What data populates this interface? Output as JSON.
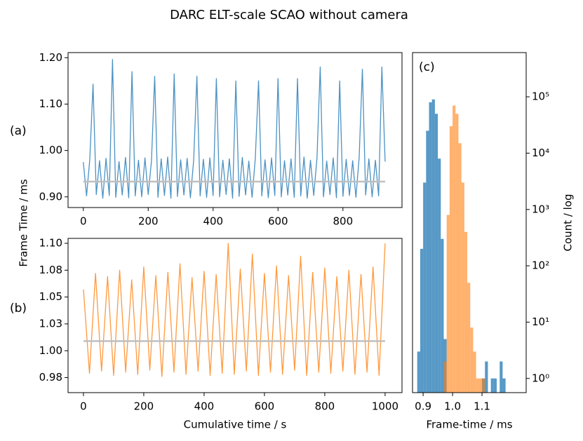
{
  "figure": {
    "title": "DARC ELT-scale SCAO without camera",
    "ylabel": "Frame Time / ms"
  },
  "chart_data": [
    {
      "type": "line",
      "annotation": "(a)",
      "x": [
        0,
        10,
        20,
        30,
        40,
        50,
        60,
        70,
        80,
        90,
        100,
        110,
        120,
        130,
        140,
        150,
        160,
        170,
        180,
        190,
        200,
        210,
        220,
        230,
        240,
        250,
        260,
        270,
        280,
        290,
        300,
        310,
        320,
        330,
        340,
        350,
        360,
        370,
        380,
        390,
        400,
        410,
        420,
        430,
        440,
        450,
        460,
        470,
        480,
        490,
        500,
        510,
        520,
        530,
        540,
        550,
        560,
        570,
        580,
        590,
        600,
        610,
        620,
        630,
        640,
        650,
        660,
        670,
        680,
        690,
        700,
        710,
        720,
        730,
        740,
        750,
        760,
        770,
        780,
        790,
        800,
        810,
        820,
        830,
        840,
        850,
        860,
        870,
        880,
        890,
        900,
        910,
        920,
        930
      ],
      "series": [
        {
          "color": "#1f77b4",
          "alpha": 0.8,
          "values": [
            0.975,
            0.902,
            0.981,
            1.143,
            0.905,
            0.978,
            0.897,
            0.983,
            0.903,
            1.196,
            0.899,
            0.976,
            0.904,
            0.985,
            0.898,
            1.17,
            0.902,
            0.979,
            0.9,
            0.984,
            0.905,
            0.977,
            1.16,
            0.899,
            0.982,
            0.903,
            0.986,
            0.897,
            1.165,
            0.901,
            0.98,
            0.904,
            0.983,
            0.898,
            0.978,
            1.16,
            0.902,
            0.981,
            0.899,
            0.984,
            0.903,
            1.155,
            0.9,
            0.979,
            0.905,
            0.982,
            0.897,
            1.15,
            0.901,
            0.985,
            0.904,
            0.977,
            0.899,
            0.983,
            1.15,
            0.902,
            0.98,
            0.898,
            0.984,
            0.903,
            1.155,
            0.9,
            0.978,
            0.904,
            0.982,
            0.899,
            1.155,
            0.902,
            0.986,
            0.897,
            0.979,
            0.903,
            0.983,
            1.18,
            0.9,
            0.977,
            0.905,
            0.984,
            0.898,
            1.15,
            0.901,
            0.981,
            0.903,
            0.978,
            0.899,
            0.985,
            1.175,
            0.904,
            0.982,
            0.9,
            0.979,
            0.902,
            1.18,
            0.976
          ]
        },
        {
          "color": "#bfbfbf",
          "alpha": 1,
          "x": [
            0,
            930
          ],
          "values": [
            0.933,
            0.933
          ]
        }
      ],
      "xlim": [
        -47,
        982
      ],
      "xticks": [
        0,
        200,
        400,
        600,
        800
      ],
      "ylim": [
        0.877,
        1.211
      ],
      "yticks": [
        {
          "value": 0.9,
          "label": "0.90"
        },
        {
          "value": 1,
          "label": "1.00"
        },
        {
          "value": 1.1,
          "label": "1.10"
        },
        {
          "value": 1.2,
          "label": "1.20"
        }
      ]
    },
    {
      "type": "line",
      "annotation": "(b)",
      "xlabel": "Cumulative time / s",
      "x": [
        0,
        20,
        40,
        60,
        80,
        100,
        120,
        140,
        160,
        180,
        200,
        220,
        240,
        260,
        280,
        300,
        320,
        340,
        360,
        380,
        400,
        420,
        440,
        460,
        480,
        500,
        520,
        540,
        560,
        580,
        600,
        620,
        640,
        660,
        680,
        700,
        720,
        740,
        760,
        780,
        800,
        820,
        840,
        860,
        880,
        900,
        920,
        940,
        960,
        980,
        1000
      ],
      "series": [
        {
          "color": "#ff7f0e",
          "alpha": 0.8,
          "values": [
            1.057,
            0.979,
            1.072,
            0.981,
            1.069,
            0.977,
            1.075,
            0.98,
            1.066,
            0.978,
            1.078,
            0.982,
            1.07,
            0.976,
            1.073,
            0.98,
            1.081,
            0.978,
            1.068,
            0.981,
            1.074,
            0.977,
            1.071,
            0.979,
            1.1,
            0.978,
            1.076,
            0.981,
            1.09,
            0.977,
            1.072,
            0.98,
            1.079,
            0.978,
            1.07,
            0.982,
            1.088,
            0.977,
            1.073,
            0.98,
            1.077,
            0.979,
            1.069,
            0.981,
            1.075,
            0.978,
            1.071,
            0.98,
            1.078,
            0.977,
            1.1
          ]
        },
        {
          "color": "#bfbfbf",
          "alpha": 1,
          "x": [
            0,
            1000
          ],
          "values": [
            1.009,
            1.009
          ]
        }
      ],
      "xlim": [
        -51,
        1056
      ],
      "xticks": [
        0,
        200,
        400,
        600,
        800,
        1000
      ],
      "ylim": [
        0.961,
        1.1046
      ],
      "yticks": [
        {
          "value": 0.975,
          "label": "0.98"
        },
        {
          "value": 1,
          "label": "1.00"
        },
        {
          "value": 1.025,
          "label": "1.03"
        },
        {
          "value": 1.05,
          "label": "1.05"
        },
        {
          "value": 1.075,
          "label": "1.08"
        },
        {
          "value": 1.1,
          "label": "1.10"
        }
      ]
    },
    {
      "type": "histogram",
      "annotation": "(c)",
      "xlabel": "Frame-time / ms",
      "ylabel": "Count / log",
      "yscale": "log",
      "yaxis_side": "right",
      "bins": [
        0.88,
        0.89,
        0.9,
        0.91,
        0.92,
        0.93,
        0.94,
        0.95,
        0.96,
        0.97,
        0.98,
        0.99,
        1.0,
        1.01,
        1.02,
        1.03,
        1.04,
        1.05,
        1.06,
        1.07,
        1.08,
        1.09,
        1.1,
        1.11,
        1.12,
        1.13,
        1.14,
        1.15,
        1.16,
        1.17,
        1.18,
        1.19,
        1.2
      ],
      "series": [
        {
          "color": "#1f77b4",
          "alpha": 0.75,
          "values": [
            3,
            200,
            3000,
            25000,
            80000,
            90000,
            50000,
            8000,
            300,
            5,
            0,
            0,
            0,
            0,
            0,
            0,
            0,
            0,
            0,
            0,
            0,
            0,
            1,
            2,
            0,
            1,
            1,
            0,
            2,
            1,
            0,
            0
          ]
        },
        {
          "color": "#ff7f0e",
          "alpha": 0.6,
          "values": [
            0,
            0,
            0,
            0,
            0,
            0,
            0,
            0,
            0,
            2,
            800,
            30000,
            70000,
            50000,
            15000,
            3000,
            400,
            50,
            8,
            3,
            1,
            1,
            1,
            0,
            0,
            0,
            0,
            0,
            0,
            0,
            0,
            0
          ]
        }
      ],
      "xlim": [
        0.864,
        1.25
      ],
      "xticks": [
        0.9,
        {
          "value": 1,
          "label": "1.0"
        },
        1.1
      ],
      "ylim": [
        0.56,
        610000
      ],
      "yticks": [
        {
          "value": 1,
          "label": "10⁰"
        },
        {
          "value": 10,
          "label": "10¹"
        },
        {
          "value": 100,
          "label": "10²"
        },
        {
          "value": 1000,
          "label": "10³"
        },
        {
          "value": 10000,
          "label": "10⁴"
        },
        {
          "value": 100000,
          "label": "10⁵"
        }
      ]
    }
  ]
}
